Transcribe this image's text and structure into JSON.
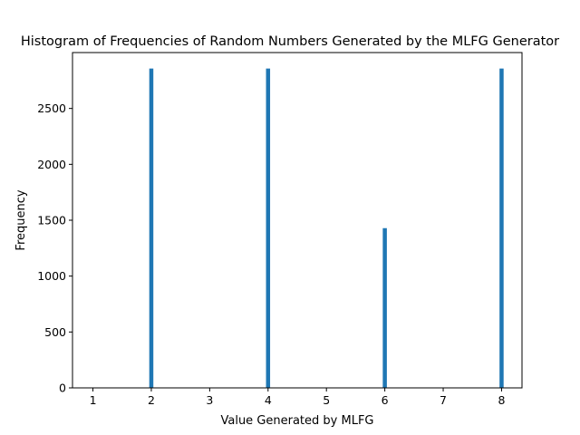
{
  "chart_data": {
    "type": "bar",
    "title": "Histogram of Frequencies of Random Numbers Generated by the MLFG Generator",
    "xlabel": "Value Generated by MLFG",
    "ylabel": "Frequency",
    "xlim": [
      0.65,
      8.35
    ],
    "ylim": [
      0,
      3000
    ],
    "xticks": [
      1,
      2,
      3,
      4,
      5,
      6,
      7,
      8
    ],
    "yticks": [
      0,
      500,
      1000,
      1500,
      2000,
      2500
    ],
    "bin_width": 0.07,
    "bar_color": "#1f77b4",
    "bars": [
      {
        "x": 2,
        "value": 2857
      },
      {
        "x": 4,
        "value": 2857
      },
      {
        "x": 6,
        "value": 1429
      },
      {
        "x": 8,
        "value": 2857
      }
    ],
    "grid": false,
    "legend": "none"
  }
}
